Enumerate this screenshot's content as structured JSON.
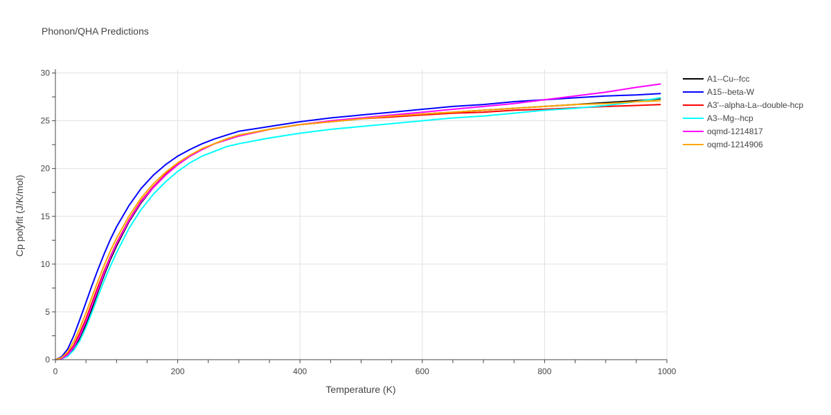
{
  "chart_data": {
    "type": "line",
    "title": "Phonon/QHA Predictions",
    "xlabel": "Temperature (K)",
    "ylabel": "Cp polyfit (J/K/mol)",
    "xlim": [
      0,
      1000
    ],
    "ylim": [
      0,
      30.4
    ],
    "xticks": [
      0,
      200,
      400,
      600,
      800,
      1000
    ],
    "yticks": [
      0,
      5,
      10,
      15,
      20,
      25,
      30
    ],
    "grid": true,
    "legend_position": "top-right",
    "x": [
      0,
      10,
      20,
      30,
      40,
      50,
      60,
      70,
      80,
      90,
      100,
      120,
      140,
      160,
      180,
      200,
      220,
      240,
      260,
      280,
      300,
      350,
      400,
      450,
      500,
      550,
      600,
      650,
      700,
      750,
      800,
      850,
      900,
      950,
      990
    ],
    "series": [
      {
        "name": "A1--Cu--fcc",
        "color": "#000000",
        "values": [
          0,
          0.1,
          0.4,
          1.1,
          2.2,
          3.7,
          5.4,
          7.2,
          8.9,
          10.5,
          11.9,
          14.4,
          16.4,
          18.0,
          19.3,
          20.4,
          21.3,
          22.0,
          22.6,
          23.1,
          23.5,
          24.1,
          24.6,
          24.9,
          25.2,
          25.5,
          25.7,
          25.9,
          26.1,
          26.3,
          26.5,
          26.7,
          26.9,
          27.1,
          27.3
        ]
      },
      {
        "name": "A15--beta-W",
        "color": "#0000ff",
        "values": [
          0,
          0.3,
          1.1,
          2.5,
          4.2,
          6.0,
          7.8,
          9.5,
          11.1,
          12.6,
          13.9,
          16.1,
          17.9,
          19.3,
          20.4,
          21.3,
          22.0,
          22.6,
          23.1,
          23.5,
          23.9,
          24.4,
          24.9,
          25.3,
          25.6,
          25.9,
          26.2,
          26.5,
          26.7,
          27.0,
          27.2,
          27.4,
          27.6,
          27.7,
          27.85
        ]
      },
      {
        "name": "A3'--alpha-La--double-hcp",
        "color": "#ff0000",
        "values": [
          0,
          0.15,
          0.6,
          1.5,
          2.8,
          4.3,
          6.0,
          7.7,
          9.3,
          10.8,
          12.2,
          14.6,
          16.6,
          18.1,
          19.4,
          20.5,
          21.3,
          22.0,
          22.6,
          23.0,
          23.4,
          24.1,
          24.6,
          24.9,
          25.2,
          25.4,
          25.6,
          25.8,
          25.9,
          26.1,
          26.2,
          26.35,
          26.5,
          26.6,
          26.7
        ]
      },
      {
        "name": "A3--Mg--hcp",
        "color": "#00ffff",
        "values": [
          0,
          0.08,
          0.35,
          1.0,
          2.0,
          3.4,
          5.0,
          6.7,
          8.3,
          9.8,
          11.2,
          13.7,
          15.7,
          17.3,
          18.6,
          19.7,
          20.6,
          21.3,
          21.8,
          22.3,
          22.6,
          23.2,
          23.7,
          24.1,
          24.4,
          24.7,
          25.0,
          25.3,
          25.5,
          25.8,
          26.1,
          26.3,
          26.6,
          27.0,
          27.4
        ]
      },
      {
        "name": "oqmd-1214817",
        "color": "#ff00ff",
        "values": [
          0,
          0.1,
          0.5,
          1.3,
          2.5,
          4.0,
          5.7,
          7.4,
          9.1,
          10.7,
          12.1,
          14.5,
          16.5,
          18.0,
          19.3,
          20.4,
          21.3,
          22.0,
          22.6,
          23.0,
          23.4,
          24.1,
          24.6,
          25.0,
          25.3,
          25.6,
          25.9,
          26.2,
          26.5,
          26.8,
          27.2,
          27.6,
          28.0,
          28.5,
          28.85
        ]
      },
      {
        "name": "oqmd-1214906",
        "color": "#ffa500",
        "values": [
          0,
          0.2,
          0.8,
          1.9,
          3.3,
          4.9,
          6.6,
          8.3,
          9.9,
          11.4,
          12.7,
          15.0,
          16.9,
          18.4,
          19.6,
          20.6,
          21.4,
          22.1,
          22.6,
          23.1,
          23.5,
          24.1,
          24.6,
          24.9,
          25.2,
          25.5,
          25.7,
          25.9,
          26.1,
          26.3,
          26.5,
          26.7,
          26.8,
          27.0,
          27.1
        ]
      }
    ]
  }
}
